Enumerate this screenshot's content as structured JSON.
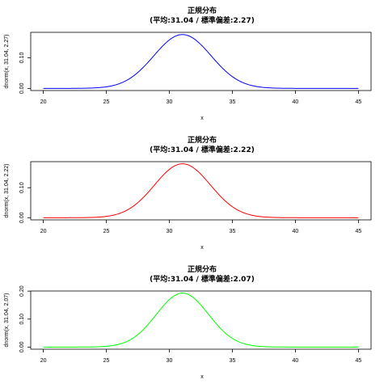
{
  "chart_data": [
    {
      "type": "line",
      "title": "正規分布",
      "subtitle": "(平均:31.04 / 標準偏差:2.27)",
      "xlabel": "x",
      "ylabel": "dnorm(x, 31.04, 2.27)",
      "mean": 31.04,
      "sd": 2.27,
      "x_range": [
        20,
        45
      ],
      "xlim": [
        19.0,
        46.0
      ],
      "ylim": [
        -0.007,
        0.183
      ],
      "x_ticks": [
        20,
        25,
        30,
        35,
        40,
        45
      ],
      "x_tick_labels": [
        "20",
        "25",
        "30",
        "35",
        "40",
        "45"
      ],
      "y_ticks": [
        0.0,
        0.1
      ],
      "y_tick_labels": [
        "0.00",
        "0.10"
      ],
      "color": "#0000ff",
      "grid": false
    },
    {
      "type": "line",
      "title": "正規分布",
      "subtitle": "(平均:31.04 / 標準偏差:2.22)",
      "xlabel": "x",
      "ylabel": "dnorm(x, 31.04, 2.22)",
      "mean": 31.04,
      "sd": 2.22,
      "x_range": [
        20,
        45
      ],
      "xlim": [
        19.0,
        46.0
      ],
      "ylim": [
        -0.0072,
        0.1868
      ],
      "x_ticks": [
        20,
        25,
        30,
        35,
        40,
        45
      ],
      "x_tick_labels": [
        "20",
        "25",
        "30",
        "35",
        "40",
        "45"
      ],
      "y_ticks": [
        0.0,
        0.1
      ],
      "y_tick_labels": [
        "0.00",
        "0.10"
      ],
      "color": "#ff0000",
      "grid": false
    },
    {
      "type": "line",
      "title": "正規分布",
      "subtitle": "(平均:31.04 / 標準偏差:2.07)",
      "xlabel": "x",
      "ylabel": "dnorm(x, 31.04, 2.07)",
      "mean": 31.04,
      "sd": 2.07,
      "x_range": [
        20,
        45
      ],
      "xlim": [
        19.0,
        46.0
      ],
      "ylim": [
        -0.0077,
        0.2004
      ],
      "x_ticks": [
        20,
        25,
        30,
        35,
        40,
        45
      ],
      "x_tick_labels": [
        "20",
        "25",
        "30",
        "35",
        "40",
        "45"
      ],
      "y_ticks": [
        0.0,
        0.1,
        0.2
      ],
      "y_tick_labels": [
        "0.00",
        "0.10",
        "0.20"
      ],
      "color": "#00ff00",
      "grid": false
    }
  ]
}
